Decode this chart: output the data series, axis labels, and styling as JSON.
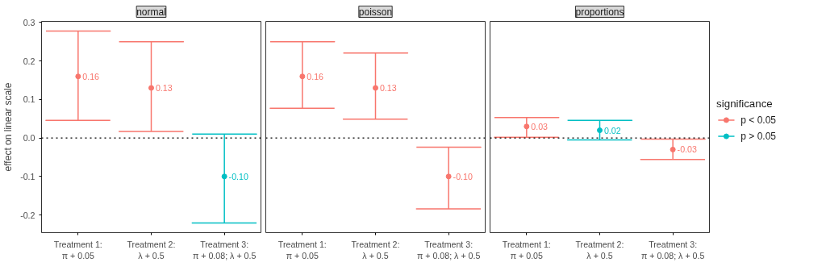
{
  "chart_data": [
    {
      "type": "scatter",
      "title": "normal",
      "ylabel": "effect on linear scale",
      "categories": [
        "Treatment 1:\nπ + 0.05",
        "Treatment 2:\nλ + 0.5",
        "Treatment 3:\nπ + 0.08; λ + 0.5"
      ],
      "series": [
        {
          "color": "#f8766d",
          "values": [
            0.16,
            0.13,
            null
          ],
          "errors": [
            [
              0.046,
              0.278
            ],
            [
              0.017,
              0.25
            ],
            null
          ],
          "value_labels": [
            "0.16",
            "0.13",
            null
          ]
        },
        {
          "color": "#00bfc4",
          "values": [
            null,
            null,
            -0.1
          ],
          "errors": [
            null,
            null,
            [
              -0.221,
              0.01
            ]
          ],
          "value_labels": [
            null,
            null,
            "-0.10"
          ]
        }
      ],
      "ylim": [
        -0.246,
        0.303
      ],
      "yticks": [
        -0.2,
        -0.1,
        {
          "value": 0,
          "label": "0.0"
        },
        0.1,
        0.2,
        0.3
      ],
      "ref_lines": [
        {
          "axis": "y",
          "value": 0,
          "line_style": "dotted",
          "color": "#000000"
        }
      ],
      "marker": "circle",
      "grid": false
    },
    {
      "type": "scatter",
      "title": "poisson",
      "categories": [
        "Treatment 1:\nπ + 0.05",
        "Treatment 2:\nλ + 0.5",
        "Treatment 3:\nπ + 0.08; λ + 0.5"
      ],
      "series": [
        {
          "color": "#f8766d",
          "values": [
            0.16,
            0.13,
            -0.1
          ],
          "errors": [
            [
              0.077,
              0.25
            ],
            [
              0.049,
              0.221
            ],
            [
              -0.184,
              -0.024
            ]
          ],
          "value_labels": [
            "0.16",
            "0.13",
            "-0.10"
          ]
        }
      ],
      "ylim": [
        -0.246,
        0.303
      ],
      "tick_labels": "x",
      "ref_lines": [
        {
          "axis": "y",
          "value": 0,
          "line_style": "dotted",
          "color": "#000000"
        }
      ],
      "marker": "circle",
      "grid": false
    },
    {
      "type": "scatter",
      "title": "proportions",
      "legend_title": "significance",
      "categories": [
        "Treatment 1:\nπ + 0.05",
        "Treatment 2:\nλ + 0.5",
        "Treatment 3:\nπ + 0.08; λ + 0.5"
      ],
      "series": [
        {
          "name": "p < 0.05",
          "color": "#f8766d",
          "values": [
            0.03,
            null,
            -0.03
          ],
          "errors": [
            [
              0.002,
              0.053
            ],
            null,
            [
              -0.056,
              -0.003
            ]
          ],
          "value_labels": [
            "0.03",
            null,
            "-0.03"
          ]
        },
        {
          "name": "p > 0.05",
          "color": "#00bfc4",
          "values": [
            null,
            0.02,
            null
          ],
          "errors": [
            null,
            [
              -0.005,
              0.046
            ],
            null
          ],
          "value_labels": [
            null,
            "0.02",
            null
          ]
        }
      ],
      "ylim": [
        -0.246,
        0.303
      ],
      "tick_labels": "x",
      "ref_lines": [
        {
          "axis": "y",
          "value": 0,
          "line_style": "dotted",
          "color": "#000000"
        }
      ],
      "marker": "circle",
      "grid": false,
      "legend": "right"
    }
  ]
}
